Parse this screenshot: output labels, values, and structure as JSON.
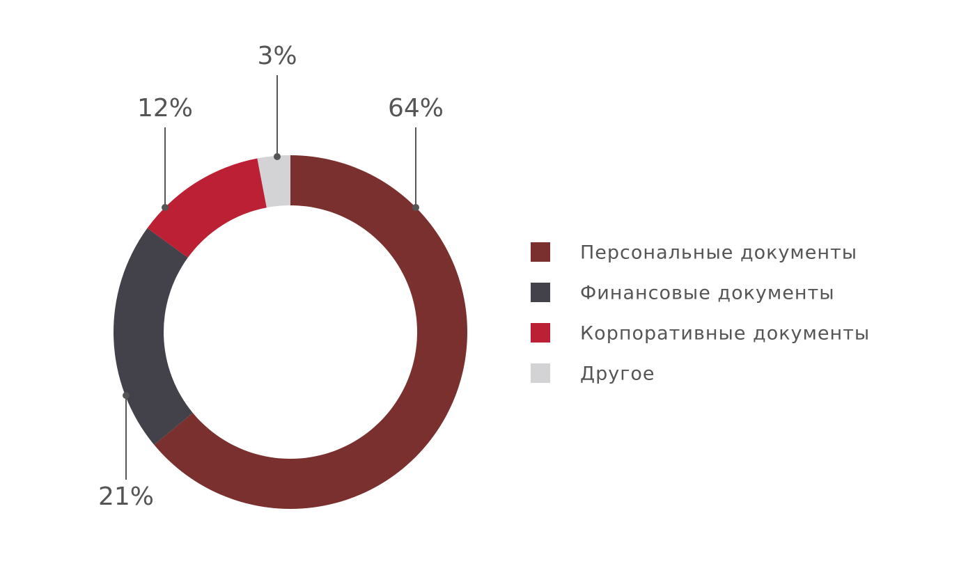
{
  "chart_data": {
    "type": "donut",
    "categories": [
      "Персональные документы",
      "Финансовые документы",
      "Корпоративные документы",
      "Другое"
    ],
    "values": [
      64,
      21,
      12,
      3
    ],
    "value_labels": [
      "64%",
      "21%",
      "12%",
      "3%"
    ],
    "colors": [
      "#7a302e",
      "#43414a",
      "#bc2034",
      "#d3d2d4"
    ],
    "legend": "right"
  }
}
